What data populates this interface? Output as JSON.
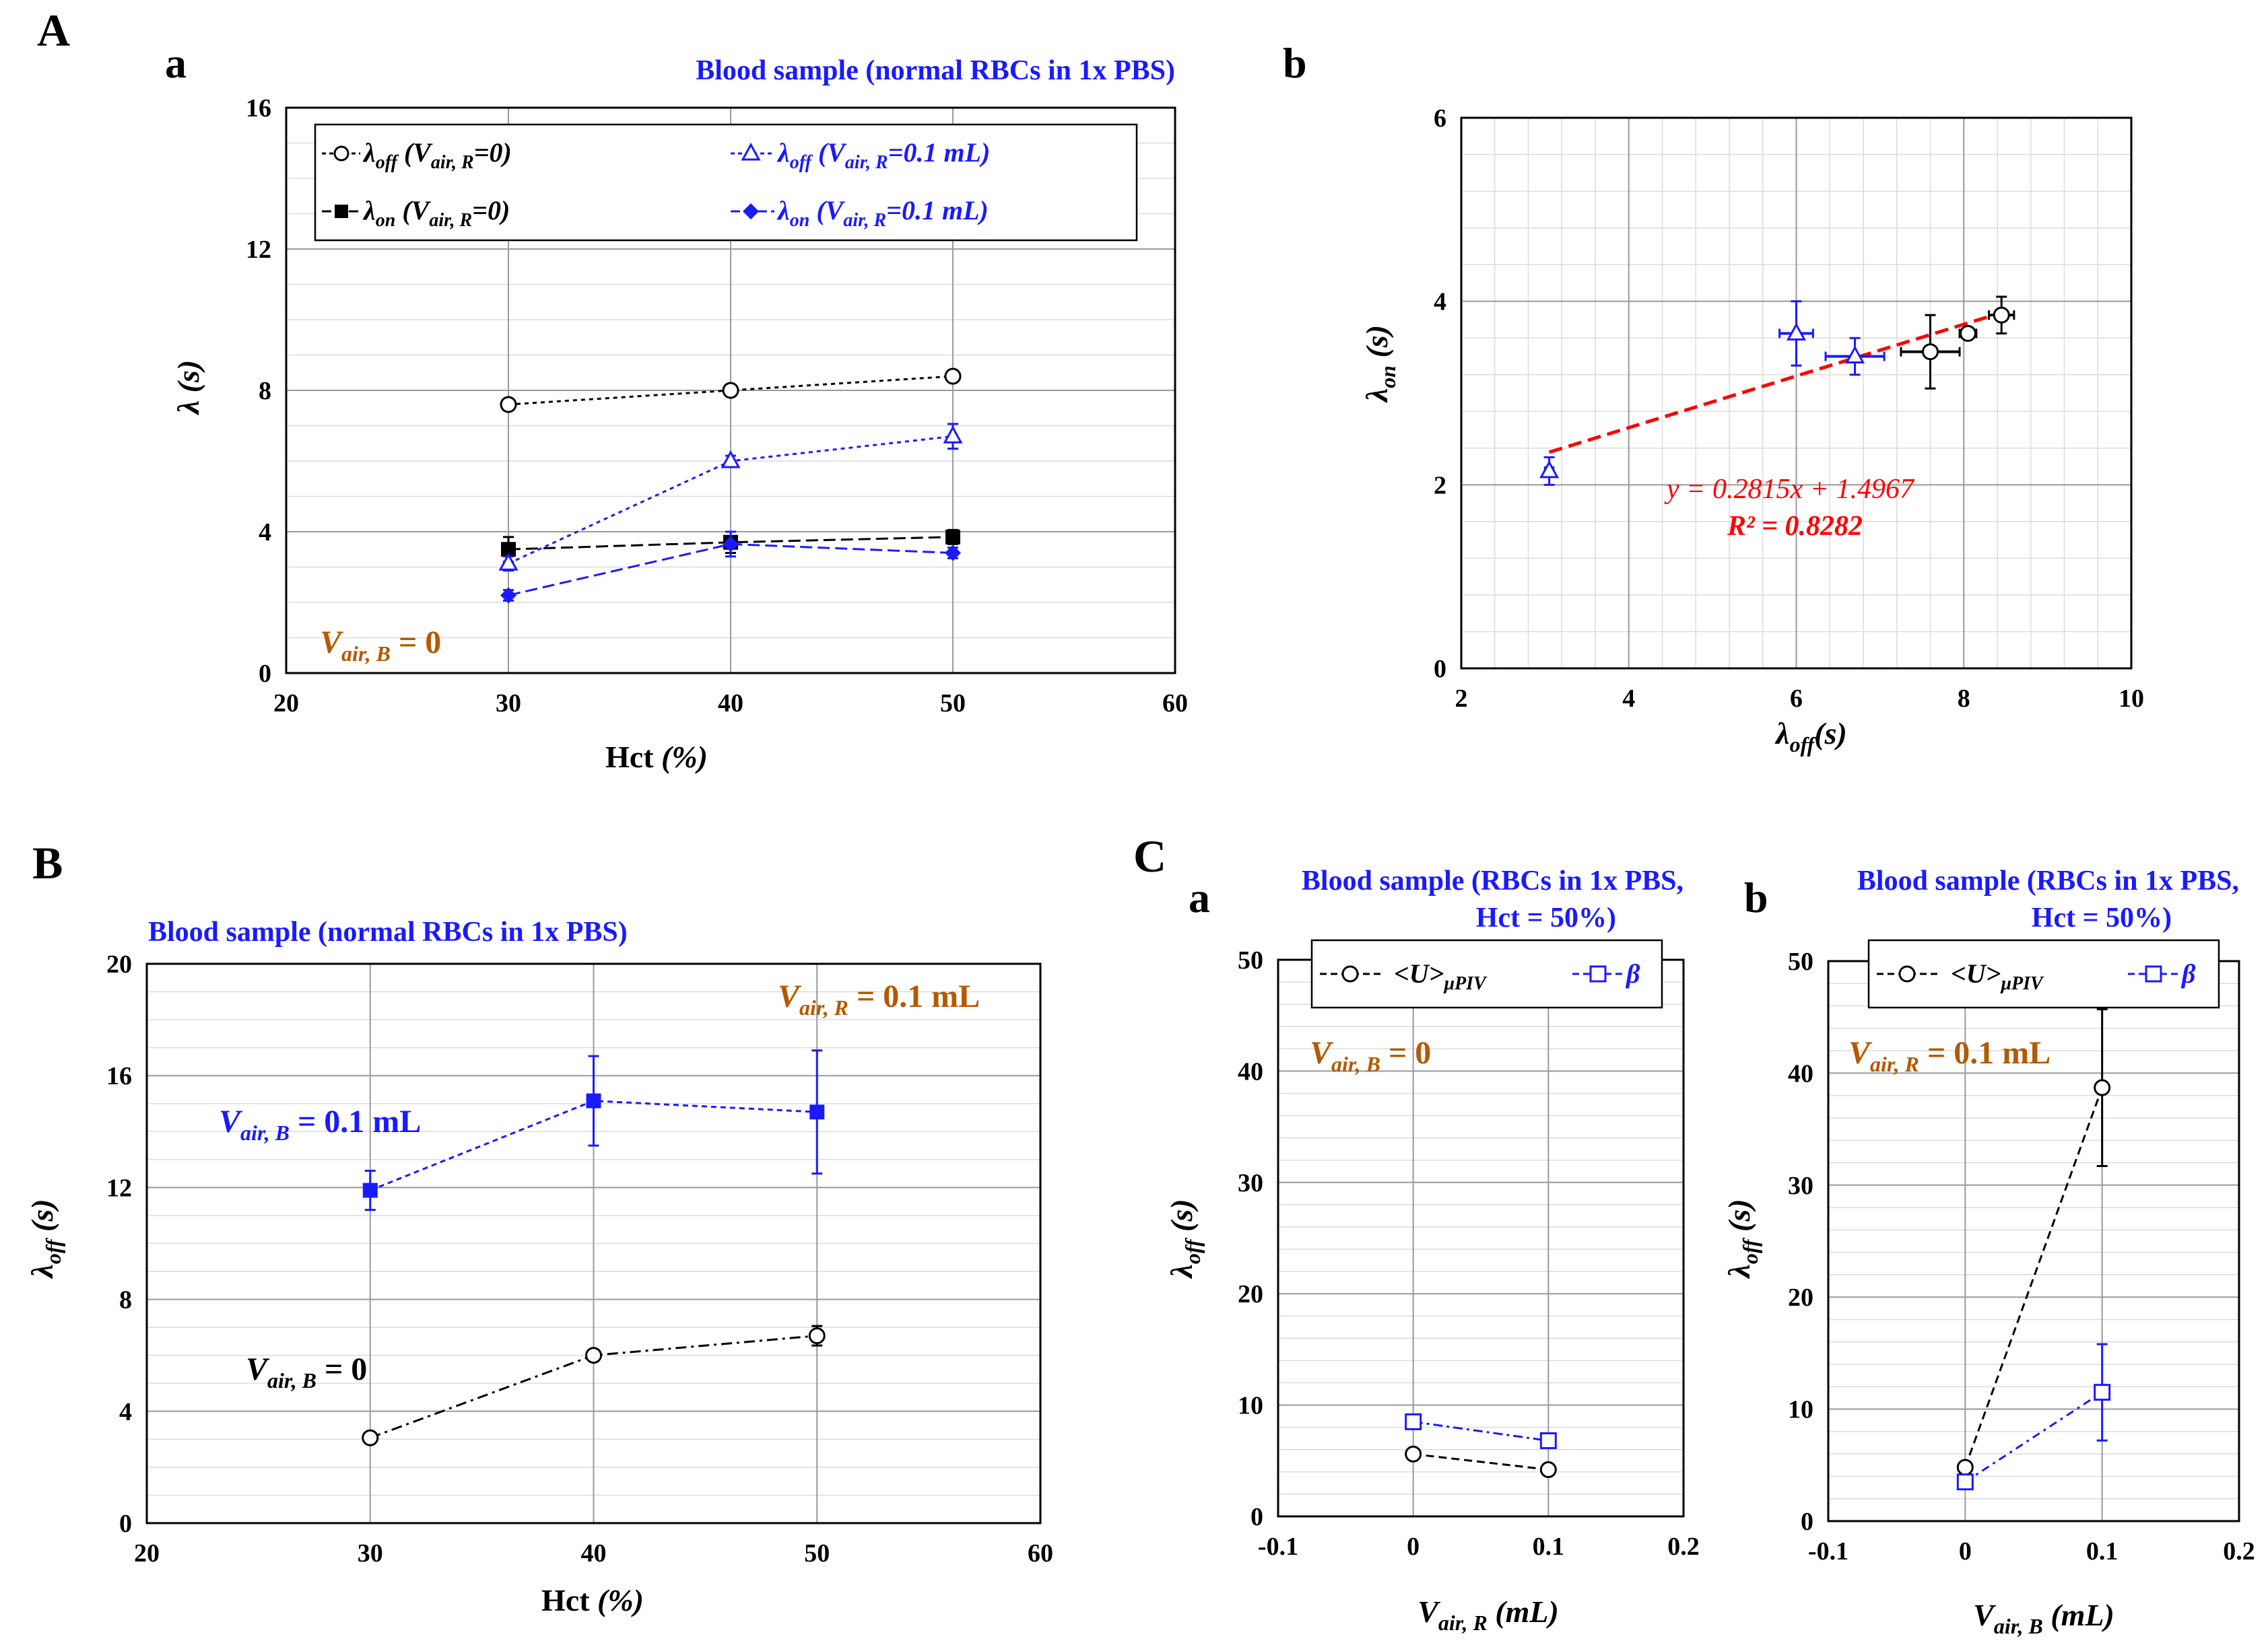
{
  "figure": {
    "panel_A": "A",
    "panel_B": "B",
    "panel_C": "C",
    "sub_a": "a",
    "sub_b": "b",
    "sub_Ca": "a",
    "sub_Cb": "b"
  },
  "colors": {
    "black": "#000000",
    "blue": "#1a1aff",
    "red": "#ff0000",
    "orange": "#b35900"
  },
  "chart_data": [
    {
      "id": "Aa",
      "type": "line",
      "title": "Blood sample (normal RBCs in 1x PBS)",
      "xlabel": "Hct (%)",
      "ylabel": "λ (s)",
      "xlim": [
        20,
        60
      ],
      "ylim": [
        0,
        16
      ],
      "xticks": [
        20,
        30,
        40,
        50,
        60
      ],
      "yticks": [
        0,
        4,
        8,
        12,
        16
      ],
      "annotation": "V_air,B = 0",
      "series": [
        {
          "name": "λoff (Vair,R=0)",
          "x": [
            30,
            40,
            50
          ],
          "y": [
            7.6,
            8.0,
            8.4
          ],
          "err": [
            0.15,
            0.15,
            0.15
          ],
          "color": "#000000",
          "marker": "circle-plus"
        },
        {
          "name": "λon (Vair,R=0)",
          "x": [
            30,
            40,
            50
          ],
          "y": [
            3.5,
            3.7,
            3.85
          ],
          "err": [
            0.35,
            0.3,
            0.2
          ],
          "color": "#000000",
          "marker": "square"
        },
        {
          "name": "λoff (Vair,R=0.1 mL)",
          "x": [
            30,
            40,
            50
          ],
          "y": [
            3.1,
            6.0,
            6.7
          ],
          "err": [
            0.2,
            0.15,
            0.35
          ],
          "color": "#1a1aff",
          "marker": "triangle"
        },
        {
          "name": "λon (Vair,R=0.1 mL)",
          "x": [
            30,
            40,
            50
          ],
          "y": [
            2.2,
            3.65,
            3.4
          ],
          "err": [
            0.15,
            0.35,
            0.15
          ],
          "color": "#1a1aff",
          "marker": "diamond"
        }
      ]
    },
    {
      "id": "Ab",
      "type": "scatter",
      "xlabel": "λoff (s)",
      "ylabel": "λon (s)",
      "xlim": [
        2,
        10
      ],
      "ylim": [
        0,
        6
      ],
      "xticks": [
        2,
        4,
        6,
        8,
        10
      ],
      "yticks": [
        0,
        2,
        4,
        6
      ],
      "fit_equation": "y = 0.2815x + 1.4967",
      "fit_r2": "R² = 0.8282",
      "fit": {
        "slope": 0.2815,
        "intercept": 1.4967,
        "x_range": [
          3.05,
          8.45
        ]
      },
      "series": [
        {
          "name": "blue",
          "color": "#1a1aff",
          "x": [
            3.05,
            6.0,
            6.7
          ],
          "y": [
            2.15,
            3.65,
            3.4
          ],
          "xerr": [
            0.05,
            0.2,
            0.35
          ],
          "yerr": [
            0.15,
            0.35,
            0.2
          ]
        },
        {
          "name": "black",
          "color": "#000000",
          "x": [
            7.6,
            8.05,
            8.45
          ],
          "y": [
            3.45,
            3.65,
            3.85
          ],
          "xerr": [
            0.35,
            0.1,
            0.15
          ],
          "yerr": [
            0.4,
            0.05,
            0.2
          ]
        }
      ]
    },
    {
      "id": "B",
      "type": "line",
      "title": "Blood sample (normal RBCs in 1x PBS)",
      "xlabel": "Hct (%)",
      "ylabel": "λoff (s)",
      "xlim": [
        20,
        60
      ],
      "ylim": [
        0,
        20
      ],
      "xticks": [
        20,
        30,
        40,
        50,
        60
      ],
      "yticks": [
        0,
        4,
        8,
        12,
        16,
        20
      ],
      "annotation_top": "V_air,R = 0.1 mL",
      "series": [
        {
          "name": "Vair,B = 0.1 mL",
          "x": [
            30,
            40,
            50
          ],
          "y": [
            11.9,
            15.1,
            14.7
          ],
          "err": [
            0.7,
            1.6,
            2.2
          ],
          "color": "#1a1aff",
          "marker": "square"
        },
        {
          "name": "Vair,B = 0",
          "x": [
            30,
            40,
            50
          ],
          "y": [
            3.05,
            6.0,
            6.7
          ],
          "err": [
            0.1,
            0.1,
            0.35
          ],
          "color": "#000000",
          "marker": "circle"
        }
      ]
    },
    {
      "id": "Ca",
      "type": "line",
      "title_line1": "Blood sample (RBCs in 1x PBS,",
      "title_line2": "Hct = 50%)",
      "xlabel": "Vair,R (mL)",
      "ylabel": "λoff (s)",
      "xlim": [
        -0.1,
        0.2
      ],
      "ylim": [
        0,
        50
      ],
      "xticks": [
        -0.1,
        0,
        0.1,
        0.2
      ],
      "yticks": [
        0,
        10,
        20,
        30,
        40,
        50
      ],
      "annotation": "V_air,B = 0",
      "series": [
        {
          "name": "<U>μPIV",
          "x": [
            0,
            0.1
          ],
          "y": [
            5.6,
            4.2
          ],
          "err": [
            0.2,
            0.2
          ],
          "color": "#000000",
          "marker": "circle"
        },
        {
          "name": "β",
          "x": [
            0,
            0.1
          ],
          "y": [
            8.5,
            6.8
          ],
          "err": [
            0.3,
            0.3
          ],
          "color": "#1a1aff",
          "marker": "square"
        }
      ]
    },
    {
      "id": "Cb",
      "type": "line",
      "title_line1": "Blood sample (RBCs in 1x PBS,",
      "title_line2": "Hct = 50%)",
      "xlabel": "Vair,B (mL)",
      "ylabel": "λoff (s)",
      "xlim": [
        -0.1,
        0.2
      ],
      "ylim": [
        0,
        50
      ],
      "xticks": [
        -0.1,
        0,
        0.1,
        0.2
      ],
      "yticks": [
        0,
        10,
        20,
        30,
        40,
        50
      ],
      "annotation": "V_air,R = 0.1 mL",
      "series": [
        {
          "name": "<U>μPIV",
          "x": [
            0,
            0.1
          ],
          "y": [
            4.8,
            38.7
          ],
          "err": [
            0.3,
            7.0
          ],
          "color": "#000000",
          "marker": "circle"
        },
        {
          "name": "β",
          "x": [
            0,
            0.1
          ],
          "y": [
            3.5,
            11.5
          ],
          "err": [
            0.3,
            4.3
          ],
          "color": "#1a1aff",
          "marker": "square"
        }
      ]
    }
  ]
}
